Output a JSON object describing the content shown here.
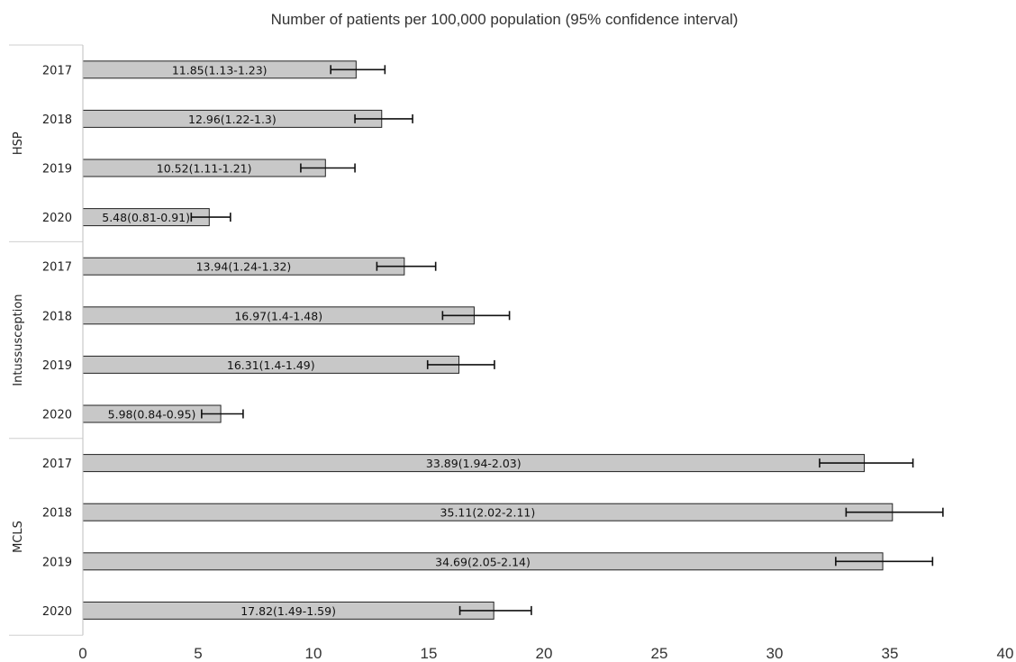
{
  "chart_data": {
    "type": "bar",
    "orientation": "horizontal",
    "title": "Number of patients per 100,000 population (95% confidence interval)",
    "xlabel": "",
    "ylabel": "",
    "xlim": [
      0,
      40
    ],
    "x_ticks": [
      "0",
      "5",
      "10",
      "15",
      "20",
      "25",
      "30",
      "35",
      "40"
    ],
    "grid": false,
    "bar_color": "#c8c8c8",
    "groups": [
      {
        "name": "HSP",
        "bars": [
          {
            "category": "2017",
            "value": 11.85,
            "err_low": 10.75,
            "err_high": 13.1,
            "label": "11.85(1.13-1.23)"
          },
          {
            "category": "2018",
            "value": 12.96,
            "err_low": 11.8,
            "err_high": 14.3,
            "label": "12.96(1.22-1.3)"
          },
          {
            "category": "2019",
            "value": 10.52,
            "err_low": 9.45,
            "err_high": 11.8,
            "label": "10.52(1.11-1.21)"
          },
          {
            "category": "2020",
            "value": 5.48,
            "err_low": 4.7,
            "err_high": 6.4,
            "label": "5.48(0.81-0.91)"
          }
        ]
      },
      {
        "name": "Intussusception",
        "bars": [
          {
            "category": "2017",
            "value": 13.94,
            "err_low": 12.75,
            "err_high": 15.3,
            "label": "13.94(1.24-1.32)"
          },
          {
            "category": "2018",
            "value": 16.97,
            "err_low": 15.6,
            "err_high": 18.5,
            "label": "16.97(1.4-1.48)"
          },
          {
            "category": "2019",
            "value": 16.31,
            "err_low": 14.95,
            "err_high": 17.85,
            "label": "16.31(1.4-1.49)"
          },
          {
            "category": "2020",
            "value": 5.98,
            "err_low": 5.15,
            "err_high": 6.95,
            "label": "5.98(0.84-0.95)"
          }
        ]
      },
      {
        "name": "MCLS",
        "bars": [
          {
            "category": "2017",
            "value": 33.89,
            "err_low": 31.95,
            "err_high": 36.0,
            "label": "33.89(1.94-2.03)"
          },
          {
            "category": "2018",
            "value": 35.11,
            "err_low": 33.1,
            "err_high": 37.3,
            "label": "35.11(2.02-2.11)"
          },
          {
            "category": "2019",
            "value": 34.69,
            "err_low": 32.65,
            "err_high": 36.85,
            "label": "34.69(2.05-2.14)"
          },
          {
            "category": "2020",
            "value": 17.82,
            "err_low": 16.35,
            "err_high": 19.45,
            "label": "17.82(1.49-1.59)"
          }
        ]
      }
    ]
  }
}
